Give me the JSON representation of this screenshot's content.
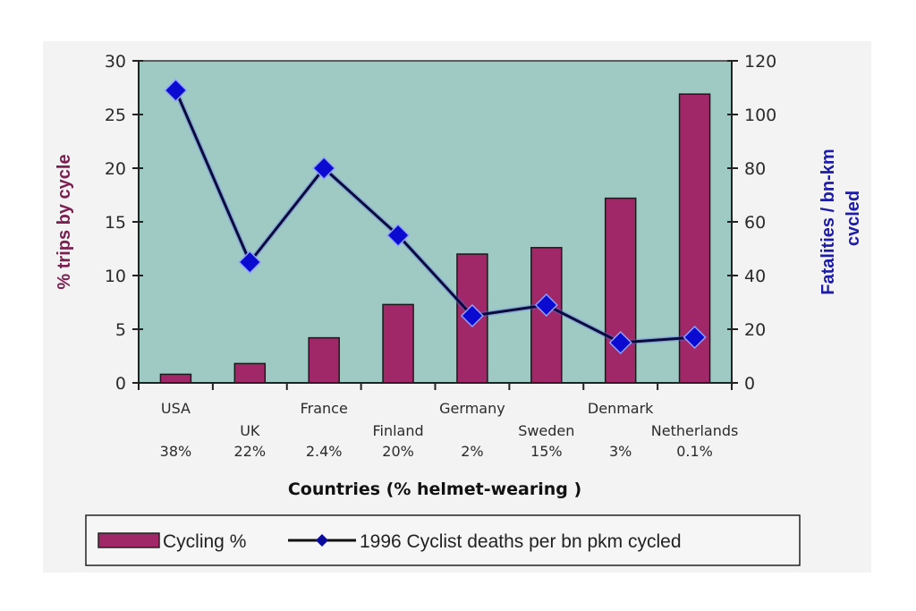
{
  "chart_data": {
    "type": "bar+line",
    "title": "",
    "xlabel": "Countries (% helmet-wearing )",
    "ylabel_left": "% trips by cycle",
    "ylabel_right_line1": "Fatalities / bn-km",
    "ylabel_right_line2": "cvcled",
    "categories": [
      "USA",
      "UK",
      "France",
      "Finland",
      "Germany",
      "Sweden",
      "Denmark",
      "Netherlands"
    ],
    "helmet_wearing": [
      "38%",
      "22%",
      "2.4%",
      "20%",
      "2%",
      "15%",
      "3%",
      "0.1%"
    ],
    "ylim_left": [
      0,
      30
    ],
    "yticks_left": [
      0,
      5,
      10,
      15,
      20,
      25,
      30
    ],
    "ylim_right": [
      0,
      120
    ],
    "yticks_right": [
      0,
      20,
      40,
      60,
      80,
      100,
      120
    ],
    "grid": false,
    "legend_position": "bottom",
    "series": [
      {
        "name": "Cycling %",
        "type": "bar",
        "axis": "left",
        "color": "#a02868",
        "values": [
          0.8,
          1.8,
          4.2,
          7.3,
          12.0,
          12.6,
          17.2,
          26.9
        ]
      },
      {
        "name": "1996 Cyclist deaths per bn pkm cycled",
        "type": "line",
        "axis": "right",
        "color": "#0a0a9c",
        "values": [
          109,
          45,
          80,
          55,
          25,
          29,
          15,
          17
        ]
      }
    ],
    "colors": {
      "plot_bg": "#9fcac3",
      "left_label": "#7a1f50",
      "right_label": "#1c1ca8"
    }
  }
}
